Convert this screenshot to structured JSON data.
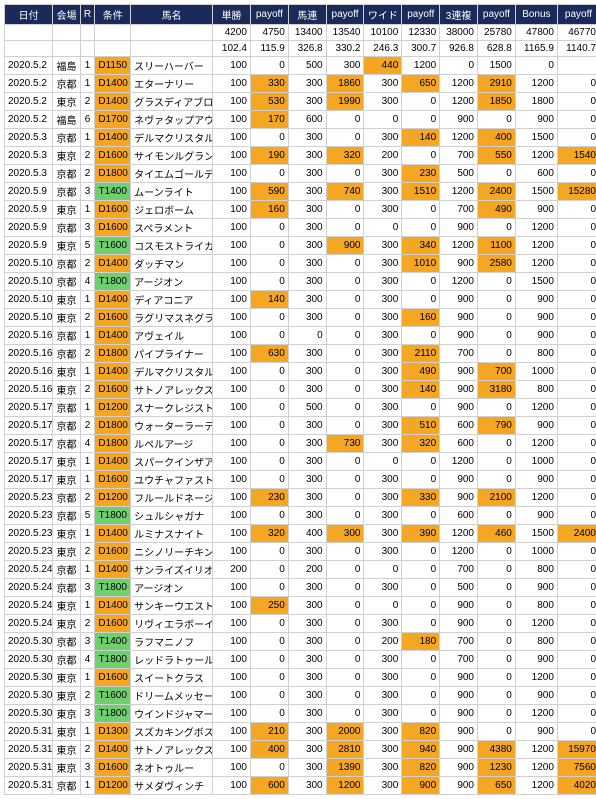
{
  "headers": [
    "日付",
    "会場",
    "R",
    "条件",
    "馬名",
    "単勝",
    "payoff",
    "馬連",
    "payoff",
    "ワイド",
    "payoff",
    "3連複",
    "payoff",
    "Bonus",
    "payoff"
  ],
  "summary1": [
    "",
    "",
    "",
    "",
    "",
    "4200",
    "4750",
    "13400",
    "13540",
    "10100",
    "12330",
    "38000",
    "25780",
    "47800",
    "46770"
  ],
  "summary2": [
    "",
    "",
    "",
    "",
    "",
    "102.4",
    "115.9",
    "326.8",
    "330.2",
    "246.3",
    "300.7",
    "926.8",
    "628.8",
    "1165.9",
    "1140.7"
  ],
  "cond_colors": {
    "D": "hl",
    "T": "gr"
  },
  "rows": [
    [
      "2020.5.2",
      "福島",
      "1",
      "D1150",
      "スリーハーバー",
      "100",
      0,
      "0",
      0,
      "500",
      0,
      "300",
      0,
      "440",
      1,
      "1200",
      0,
      "0",
      0,
      "1500",
      0,
      "0",
      0
    ],
    [
      "2020.5.2",
      "京都",
      "1",
      "D1400",
      "エターナリー",
      "100",
      0,
      "330",
      1,
      "300",
      0,
      "1860",
      1,
      "300",
      0,
      "650",
      1,
      "1200",
      0,
      "2910",
      1,
      "1200",
      0,
      "0",
      0
    ],
    [
      "2020.5.2",
      "東京",
      "2",
      "D1400",
      "グラスディアブロ",
      "100",
      0,
      "530",
      1,
      "300",
      0,
      "1990",
      1,
      "300",
      0,
      "0",
      0,
      "1200",
      0,
      "1850",
      1,
      "1800",
      0,
      "0",
      0
    ],
    [
      "2020.5.2",
      "福島",
      "6",
      "D1700",
      "ネヴァタップアウト",
      "100",
      0,
      "170",
      1,
      "600",
      0,
      "0",
      0,
      "0",
      0,
      "0",
      0,
      "900",
      0,
      "0",
      0,
      "900",
      0,
      "0",
      0
    ],
    [
      "2020.5.3",
      "京都",
      "1",
      "D1400",
      "デルマクリスタル",
      "100",
      0,
      "0",
      0,
      "300",
      0,
      "0",
      0,
      "300",
      0,
      "140",
      1,
      "1200",
      0,
      "400",
      1,
      "1500",
      0,
      "0",
      0
    ],
    [
      "2020.5.3",
      "東京",
      "2",
      "D1600",
      "サイモンルグラン",
      "100",
      0,
      "190",
      1,
      "300",
      0,
      "320",
      1,
      "200",
      0,
      "0",
      0,
      "700",
      0,
      "550",
      1,
      "1200",
      0,
      "1540",
      1
    ],
    [
      "2020.5.3",
      "京都",
      "2",
      "D1800",
      "タイエムゴールデン",
      "100",
      0,
      "0",
      0,
      "300",
      0,
      "0",
      0,
      "300",
      0,
      "230",
      1,
      "500",
      0,
      "0",
      0,
      "600",
      0,
      "0",
      0
    ],
    [
      "2020.5.9",
      "京都",
      "3",
      "T1400",
      "ムーンライト",
      "100",
      0,
      "590",
      1,
      "300",
      0,
      "740",
      1,
      "300",
      0,
      "1510",
      1,
      "1200",
      0,
      "2400",
      1,
      "1500",
      0,
      "15280",
      1
    ],
    [
      "2020.5.9",
      "東京",
      "1",
      "D1600",
      "ジェロボーム",
      "100",
      0,
      "160",
      1,
      "300",
      0,
      "0",
      0,
      "300",
      0,
      "0",
      0,
      "700",
      0,
      "490",
      1,
      "900",
      0,
      "0",
      0
    ],
    [
      "2020.5.9",
      "京都",
      "3",
      "D1600",
      "スペラメント",
      "100",
      0,
      "0",
      0,
      "300",
      0,
      "0",
      0,
      "0",
      0,
      "0",
      0,
      "900",
      0,
      "0",
      0,
      "1200",
      0,
      "0",
      0
    ],
    [
      "2020.5.9",
      "東京",
      "5",
      "T1600",
      "コスモストライカー",
      "100",
      0,
      "0",
      0,
      "300",
      0,
      "900",
      1,
      "300",
      0,
      "340",
      1,
      "1200",
      0,
      "1100",
      1,
      "1200",
      0,
      "0",
      0
    ],
    [
      "2020.5.10",
      "京都",
      "2",
      "D1400",
      "ダッチマン",
      "100",
      0,
      "0",
      0,
      "300",
      0,
      "0",
      0,
      "300",
      0,
      "1010",
      1,
      "900",
      0,
      "2580",
      1,
      "1200",
      0,
      "0",
      0
    ],
    [
      "2020.5.10",
      "京都",
      "4",
      "T1800",
      "アージオン",
      "100",
      0,
      "0",
      0,
      "300",
      0,
      "0",
      0,
      "300",
      0,
      "0",
      0,
      "1200",
      0,
      "0",
      0,
      "1500",
      0,
      "0",
      0
    ],
    [
      "2020.5.10",
      "東京",
      "1",
      "D1400",
      "ディアコニア",
      "100",
      0,
      "140",
      1,
      "300",
      0,
      "0",
      0,
      "300",
      0,
      "0",
      0,
      "900",
      0,
      "0",
      0,
      "900",
      0,
      "0",
      0
    ],
    [
      "2020.5.10",
      "東京",
      "2",
      "D1600",
      "ラグリマスネグラス",
      "100",
      0,
      "0",
      0,
      "300",
      0,
      "0",
      0,
      "300",
      0,
      "160",
      1,
      "900",
      0,
      "0",
      0,
      "900",
      0,
      "0",
      0
    ],
    [
      "2020.5.16",
      "京都",
      "1",
      "D1400",
      "アヴェイル",
      "100",
      0,
      "0",
      0,
      "0",
      0,
      "0",
      0,
      "300",
      0,
      "0",
      0,
      "900",
      0,
      "0",
      0,
      "900",
      0,
      "0",
      0
    ],
    [
      "2020.5.16",
      "京都",
      "2",
      "D1800",
      "パイプライナー",
      "100",
      0,
      "630",
      1,
      "300",
      0,
      "0",
      0,
      "300",
      0,
      "2110",
      1,
      "700",
      0,
      "0",
      0,
      "800",
      0,
      "0",
      0
    ],
    [
      "2020.5.16",
      "東京",
      "1",
      "D1400",
      "デルマクリスタル",
      "100",
      0,
      "0",
      0,
      "300",
      0,
      "0",
      0,
      "300",
      0,
      "490",
      1,
      "900",
      0,
      "700",
      1,
      "1000",
      0,
      "0",
      0
    ],
    [
      "2020.5.16",
      "東京",
      "2",
      "D1600",
      "サトノアレックス",
      "100",
      0,
      "0",
      0,
      "300",
      0,
      "0",
      0,
      "300",
      0,
      "140",
      1,
      "900",
      0,
      "3180",
      1,
      "800",
      0,
      "0",
      0
    ],
    [
      "2020.5.17",
      "京都",
      "1",
      "D1200",
      "スナークレジスト",
      "100",
      0,
      "0",
      0,
      "500",
      0,
      "0",
      0,
      "300",
      0,
      "0",
      0,
      "900",
      0,
      "0",
      0,
      "1200",
      0,
      "0",
      0
    ],
    [
      "2020.5.17",
      "京都",
      "2",
      "D1800",
      "ウォーターラーテル",
      "100",
      0,
      "0",
      0,
      "300",
      0,
      "0",
      0,
      "300",
      0,
      "510",
      1,
      "600",
      0,
      "790",
      1,
      "900",
      0,
      "0",
      0
    ],
    [
      "2020.5.17",
      "京都",
      "4",
      "D1800",
      "ルペルアージ",
      "100",
      0,
      "0",
      0,
      "300",
      0,
      "730",
      1,
      "300",
      0,
      "320",
      1,
      "600",
      0,
      "0",
      0,
      "1200",
      0,
      "0",
      0
    ],
    [
      "2020.5.17",
      "東京",
      "1",
      "D1400",
      "スパークインザアイ",
      "100",
      0,
      "0",
      0,
      "300",
      0,
      "0",
      0,
      "0",
      0,
      "0",
      0,
      "1200",
      0,
      "0",
      0,
      "1000",
      0,
      "0",
      0
    ],
    [
      "2020.5.17",
      "東京",
      "1",
      "D1600",
      "ユウチャファスト",
      "100",
      0,
      "0",
      0,
      "300",
      0,
      "0",
      0,
      "300",
      0,
      "0",
      0,
      "900",
      0,
      "0",
      0,
      "900",
      0,
      "0",
      0
    ],
    [
      "2020.5.23",
      "京都",
      "2",
      "D1200",
      "フルールドネージュ",
      "100",
      0,
      "230",
      1,
      "300",
      0,
      "0",
      0,
      "300",
      0,
      "330",
      1,
      "900",
      0,
      "2100",
      1,
      "1200",
      0,
      "0",
      0
    ],
    [
      "2020.5.23",
      "京都",
      "5",
      "T1800",
      "シュルシャガナ",
      "100",
      0,
      "0",
      0,
      "300",
      0,
      "0",
      0,
      "300",
      0,
      "0",
      0,
      "600",
      0,
      "0",
      0,
      "900",
      0,
      "0",
      0
    ],
    [
      "2020.5.23",
      "東京",
      "1",
      "D1400",
      "ルミナスナイト",
      "100",
      0,
      "320",
      1,
      "400",
      0,
      "300",
      1,
      "300",
      0,
      "390",
      1,
      "1200",
      0,
      "460",
      1,
      "1500",
      0,
      "2400",
      1
    ],
    [
      "2020.5.23",
      "東京",
      "2",
      "D1600",
      "ニシノリーチキング",
      "100",
      0,
      "0",
      0,
      "300",
      0,
      "0",
      0,
      "300",
      0,
      "0",
      0,
      "1200",
      0,
      "0",
      0,
      "1000",
      0,
      "0",
      0
    ],
    [
      "2020.5.24",
      "京都",
      "1",
      "D1400",
      "サンライズイリオン",
      "200",
      0,
      "0",
      0,
      "200",
      0,
      "0",
      0,
      "0",
      0,
      "0",
      0,
      "700",
      0,
      "0",
      0,
      "800",
      0,
      "0",
      0
    ],
    [
      "2020.5.24",
      "京都",
      "3",
      "T1800",
      "アージオン",
      "100",
      0,
      "0",
      0,
      "300",
      0,
      "0",
      0,
      "300",
      0,
      "0",
      0,
      "500",
      0,
      "0",
      0,
      "900",
      0,
      "0",
      0
    ],
    [
      "2020.5.24",
      "東京",
      "1",
      "D1400",
      "サンキーウエスト",
      "100",
      0,
      "250",
      1,
      "300",
      0,
      "0",
      0,
      "0",
      0,
      "0",
      0,
      "900",
      0,
      "0",
      0,
      "800",
      0,
      "0",
      0
    ],
    [
      "2020.5.24",
      "東京",
      "2",
      "D1600",
      "リヴィエラボーイ",
      "100",
      0,
      "0",
      0,
      "300",
      0,
      "0",
      0,
      "300",
      0,
      "0",
      0,
      "900",
      0,
      "0",
      0,
      "1200",
      0,
      "0",
      0
    ],
    [
      "2020.5.30",
      "京都",
      "3",
      "T1400",
      "ラフマニノフ",
      "100",
      0,
      "0",
      0,
      "300",
      0,
      "0",
      0,
      "200",
      0,
      "180",
      1,
      "700",
      0,
      "0",
      0,
      "800",
      0,
      "0",
      0
    ],
    [
      "2020.5.30",
      "京都",
      "4",
      "T1800",
      "レッドラトゥール",
      "100",
      0,
      "0",
      0,
      "300",
      0,
      "0",
      0,
      "300",
      0,
      "0",
      0,
      "700",
      0,
      "0",
      0,
      "900",
      0,
      "0",
      0
    ],
    [
      "2020.5.30",
      "東京",
      "1",
      "D1600",
      "スイートクラス",
      "100",
      0,
      "0",
      0,
      "300",
      0,
      "0",
      0,
      "300",
      0,
      "0",
      0,
      "900",
      0,
      "0",
      0,
      "1200",
      0,
      "0",
      0
    ],
    [
      "2020.5.30",
      "東京",
      "2",
      "T1600",
      "ドリームメッセージ",
      "100",
      0,
      "0",
      0,
      "300",
      0,
      "0",
      0,
      "300",
      0,
      "0",
      0,
      "900",
      0,
      "0",
      0,
      "900",
      0,
      "0",
      0
    ],
    [
      "2020.5.30",
      "東京",
      "3",
      "T1800",
      "ウインドジャマー",
      "100",
      0,
      "0",
      0,
      "300",
      0,
      "0",
      0,
      "300",
      0,
      "0",
      0,
      "900",
      0,
      "0",
      0,
      "1200",
      0,
      "0",
      0
    ],
    [
      "2020.5.31",
      "東京",
      "1",
      "D1300",
      "スズカキングボス",
      "100",
      0,
      "210",
      1,
      "300",
      0,
      "2000",
      1,
      "300",
      0,
      "820",
      1,
      "900",
      0,
      "0",
      0,
      "900",
      0,
      "0",
      0
    ],
    [
      "2020.5.31",
      "東京",
      "2",
      "D1400",
      "サトノアレックス",
      "100",
      0,
      "400",
      1,
      "300",
      0,
      "2810",
      1,
      "300",
      0,
      "940",
      1,
      "900",
      0,
      "4380",
      1,
      "1200",
      0,
      "15970",
      1
    ],
    [
      "2020.5.31",
      "東京",
      "3",
      "D1600",
      "ネオトゥルー",
      "100",
      0,
      "0",
      0,
      "300",
      0,
      "1390",
      1,
      "300",
      0,
      "820",
      1,
      "900",
      0,
      "1230",
      1,
      "1200",
      0,
      "7560",
      1
    ],
    [
      "2020.5.31",
      "京都",
      "1",
      "D1200",
      "サメダヴィンチ",
      "100",
      0,
      "600",
      1,
      "300",
      0,
      "1200",
      1,
      "300",
      0,
      "900",
      1,
      "900",
      0,
      "650",
      1,
      "1200",
      0,
      "4020",
      1
    ]
  ]
}
